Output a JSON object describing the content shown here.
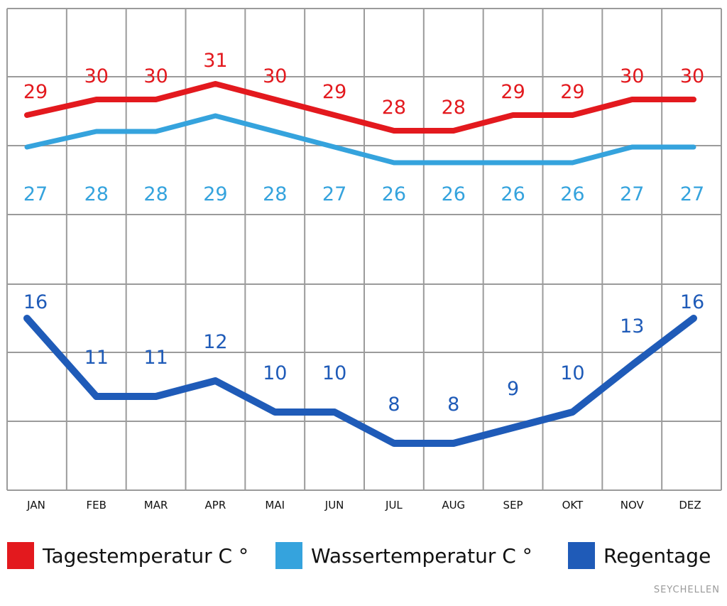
{
  "chart_data": {
    "type": "line",
    "categories": [
      "JAN",
      "FEB",
      "MAR",
      "APR",
      "MAI",
      "JUN",
      "JUL",
      "AUG",
      "SEP",
      "OKT",
      "NOV",
      "DEZ"
    ],
    "series": [
      {
        "name": "Tagestemperatur C °",
        "color": "#e3191e",
        "values": [
          29,
          30,
          30,
          31,
          30,
          29,
          28,
          28,
          29,
          29,
          30,
          30
        ]
      },
      {
        "name": "Wassertemperatur C °",
        "color": "#35a3dd",
        "values": [
          27,
          28,
          28,
          29,
          28,
          27,
          26,
          26,
          26,
          26,
          27,
          27
        ]
      },
      {
        "name": "Regentage",
        "color": "#1f5bb8",
        "values": [
          16,
          11,
          11,
          12,
          10,
          10,
          8,
          8,
          9,
          10,
          13,
          16
        ]
      }
    ],
    "title": "",
    "xlabel": "",
    "ylabel": "",
    "legend_position": "bottom",
    "grid": true
  },
  "legend": {
    "items": [
      {
        "label": "Tagestemperatur C °",
        "color": "#e3191e"
      },
      {
        "label": "Wassertemperatur C °",
        "color": "#35a3dd"
      },
      {
        "label": "Regentage",
        "color": "#1f5bb8"
      }
    ]
  },
  "watermark": "SEYCHELLEN"
}
